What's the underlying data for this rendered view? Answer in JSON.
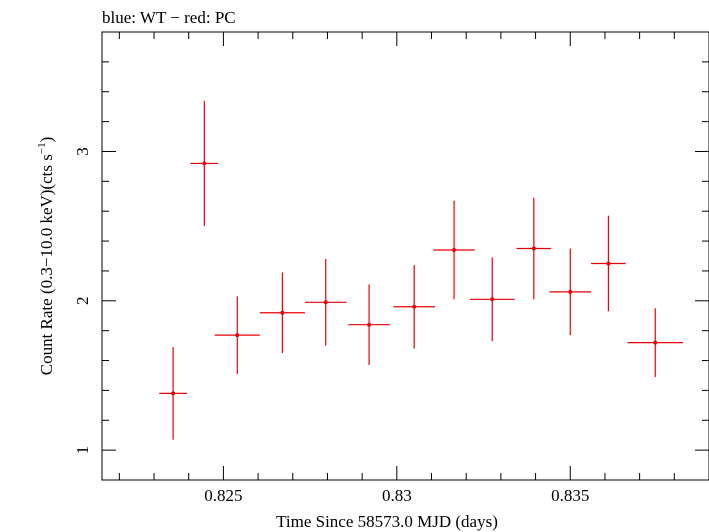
{
  "chart_data": {
    "type": "scatter",
    "title": "blue: WT − red: PC",
    "xlabel": "Time Since 58573.0 MJD (days)",
    "ylabel_main": "Count Rate (0.3−10.0 keV)(cts s",
    "ylabel_exp": "−1",
    "ylabel_close": ")",
    "xlim": [
      0.8215,
      0.839
    ],
    "ylim": [
      0.8,
      3.8
    ],
    "x_ticks": [
      {
        "value": 0.825,
        "label": "0.825"
      },
      {
        "value": 0.83,
        "label": "0.83"
      },
      {
        "value": 0.835,
        "label": "0.835"
      }
    ],
    "x_minor_step": 0.001,
    "y_ticks": [
      {
        "value": 1,
        "label": "1"
      },
      {
        "value": 2,
        "label": "2"
      },
      {
        "value": 3,
        "label": "3"
      }
    ],
    "y_minor_step": 0.2,
    "grid": false,
    "series": [
      {
        "name": "PC",
        "color": "#e8000b",
        "points": [
          {
            "x": 0.82355,
            "xerr": 0.0004,
            "y": 1.38,
            "yerr": 0.31
          },
          {
            "x": 0.82445,
            "xerr": 0.0004,
            "y": 2.92,
            "yerr": 0.42
          },
          {
            "x": 0.8254,
            "xerr": 0.00065,
            "y": 1.77,
            "yerr": 0.26
          },
          {
            "x": 0.8267,
            "xerr": 0.00065,
            "y": 1.92,
            "yerr": 0.27
          },
          {
            "x": 0.82795,
            "xerr": 0.0006,
            "y": 1.99,
            "yerr": 0.29
          },
          {
            "x": 0.8292,
            "xerr": 0.0006,
            "y": 1.84,
            "yerr": 0.27
          },
          {
            "x": 0.8305,
            "xerr": 0.0006,
            "y": 1.96,
            "yerr": 0.28
          },
          {
            "x": 0.83165,
            "xerr": 0.0006,
            "y": 2.34,
            "yerr": 0.33
          },
          {
            "x": 0.83275,
            "xerr": 0.00065,
            "y": 2.01,
            "yerr": 0.28
          },
          {
            "x": 0.83395,
            "xerr": 0.0005,
            "y": 2.35,
            "yerr": 0.34
          },
          {
            "x": 0.835,
            "xerr": 0.0006,
            "y": 2.06,
            "yerr": 0.29
          },
          {
            "x": 0.8361,
            "xerr": 0.0005,
            "y": 2.25,
            "yerr": 0.32
          },
          {
            "x": 0.83745,
            "xerr": 0.0008,
            "y": 1.72,
            "yerr": 0.23
          }
        ]
      }
    ]
  }
}
